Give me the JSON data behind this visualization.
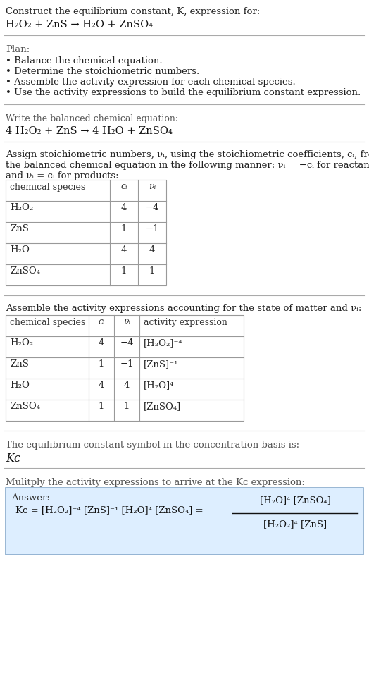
{
  "title_line1": "Construct the equilibrium constant, K, expression for:",
  "title_line2_parts": [
    "H",
    "2",
    "O",
    "2",
    " + ZnS → H",
    "2",
    "O + ZnSO",
    "4"
  ],
  "plan_header": "Plan:",
  "plan_bullets": [
    "• Balance the chemical equation.",
    "• Determine the stoichiometric numbers.",
    "• Assemble the activity expression for each chemical species.",
    "• Use the activity expressions to build the equilibrium constant expression."
  ],
  "balanced_header": "Write the balanced chemical equation:",
  "stoich_intro": "Assign stoichiometric numbers, ν",
  "stoich_intro2": ", using the stoichiometric coefficients, c",
  "stoich_intro3": ", from",
  "stoich_line2": "the balanced chemical equation in the following manner: ν",
  "stoich_line2b": " = −c",
  "stoich_line2c": " for reactants",
  "stoich_line3": "and ν",
  "stoich_line3b": " = c",
  "stoich_line3c": " for products:",
  "table1_cols": [
    "chemical species",
    "c",
    "ν"
  ],
  "table1_rows": [
    [
      "H₂O₂",
      "4",
      "−4"
    ],
    [
      "ZnS",
      "1",
      "−1"
    ],
    [
      "H₂O",
      "4",
      "4"
    ],
    [
      "ZnSO₄",
      "1",
      "1"
    ]
  ],
  "activity_header": "Assemble the activity expressions accounting for the state of matter and ν",
  "table2_cols": [
    "chemical species",
    "c",
    "ν",
    "activity expression"
  ],
  "table2_rows": [
    [
      "H₂O₂",
      "4",
      "−4",
      "[H₂O₂]⁻⁴"
    ],
    [
      "ZnS",
      "1",
      "−1",
      "[ZnS]⁻¹"
    ],
    [
      "H₂O",
      "4",
      "4",
      "[H₂O]⁴"
    ],
    [
      "ZnSO₄",
      "1",
      "1",
      "[ZnSO₄]"
    ]
  ],
  "kc_header": "The equilibrium constant symbol in the concentration basis is:",
  "multiply_header": "Mulitply the activity expressions to arrive at the K",
  "multiply_header2": " expression:",
  "answer_label": "Answer:",
  "answer_line1": "K",
  "answer_eq_mid": " = [H₂O₂]⁻⁴ [ZnS]⁻¹ [H₂O]⁴ [ZnSO₄] = ",
  "frac_num": "[H₂O]⁴ [ZnSO₄]",
  "frac_den": "[H₂O₂]⁴ [ZnS]",
  "bg_color": "#ffffff",
  "answer_bg": "#ddeeff",
  "line_color": "#aaaaaa",
  "table_line_color": "#999999",
  "answer_border": "#88aacc"
}
